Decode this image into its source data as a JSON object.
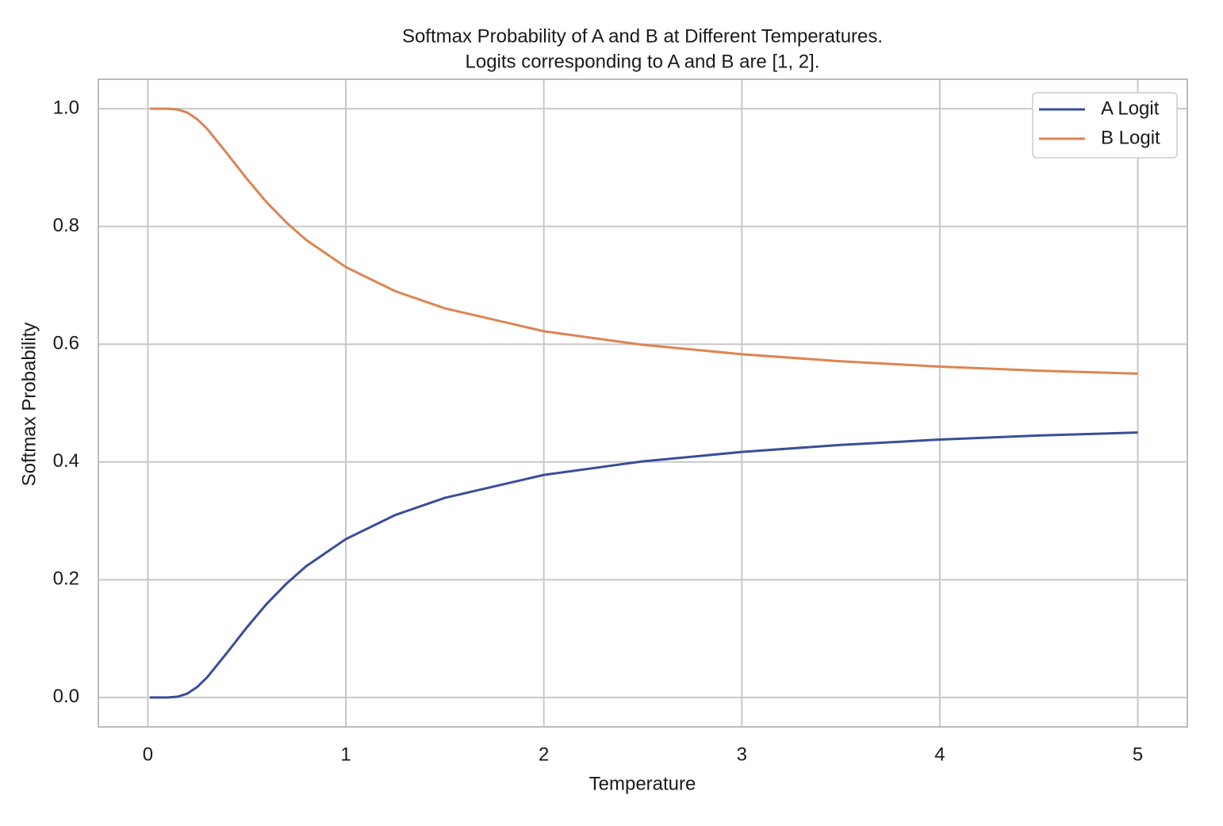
{
  "chart_data": {
    "type": "line",
    "title": "Softmax Probability of A and B at Different Temperatures.",
    "subtitle": "Logits corresponding to A and B are [1, 2].",
    "x_label": "Temperature",
    "y_label": "Softmax Probability",
    "x": [
      0.01,
      0.1,
      0.15,
      0.2,
      0.25,
      0.3,
      0.4,
      0.5,
      0.6,
      0.7,
      0.8,
      1,
      1.25,
      1.5,
      2,
      2.5,
      3,
      3.5,
      4,
      4.5,
      5
    ],
    "series": [
      {
        "name": "A Logit",
        "color": "#3a4e98",
        "values": [
          0.0,
          0.0,
          0.0013,
          0.0067,
          0.018,
          0.0344,
          0.076,
          0.119,
          0.159,
          0.1933,
          0.223,
          0.269,
          0.31,
          0.339,
          0.378,
          0.401,
          0.417,
          0.429,
          0.438,
          0.445,
          0.45
        ]
      },
      {
        "name": "B Logit",
        "color": "#dd8452",
        "values": [
          1.0,
          1.0,
          0.9987,
          0.9933,
          0.982,
          0.9656,
          0.924,
          0.881,
          0.841,
          0.8067,
          0.777,
          0.731,
          0.69,
          0.661,
          0.622,
          0.599,
          0.583,
          0.571,
          0.562,
          0.555,
          0.55
        ]
      }
    ],
    "xlim": [
      -0.25,
      5.25
    ],
    "ylim": [
      -0.05,
      1.05
    ],
    "xticks": [
      0,
      1,
      2,
      3,
      4,
      5
    ],
    "yticks": [
      {
        "value": 0,
        "label": "0.0"
      },
      {
        "value": 0.2,
        "label": "0.2"
      },
      {
        "value": 0.4,
        "label": "0.4"
      },
      {
        "value": 0.6,
        "label": "0.6"
      },
      {
        "value": 0.8,
        "label": "0.8"
      },
      {
        "value": 1,
        "label": "1.0"
      }
    ],
    "grid": true,
    "legend": "upper right"
  }
}
